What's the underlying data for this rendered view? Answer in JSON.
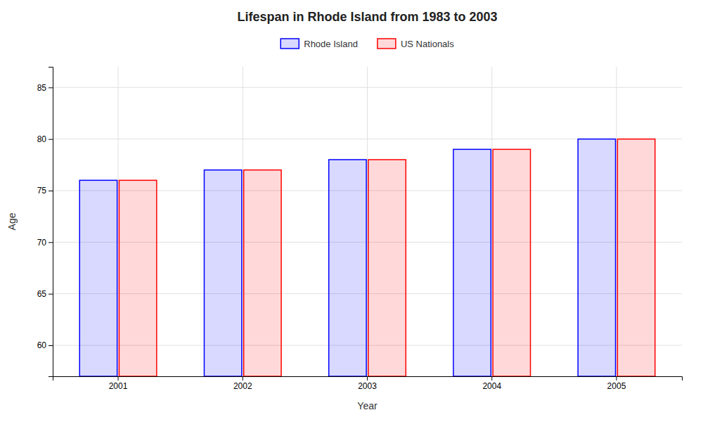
{
  "chart_data": {
    "type": "bar",
    "title": "Lifespan in Rhode Island from 1983 to 2003",
    "xlabel": "Year",
    "ylabel": "Age",
    "categories": [
      "2001",
      "2002",
      "2003",
      "2004",
      "2005"
    ],
    "series": [
      {
        "name": "Rhode Island",
        "color": "#0000ff",
        "values": [
          76,
          77,
          78,
          79,
          80
        ]
      },
      {
        "name": "US Nationals",
        "color": "#ff0000",
        "values": [
          76,
          77,
          78,
          79,
          80
        ]
      }
    ],
    "ylim": [
      57,
      87
    ],
    "yticks": [
      60,
      65,
      70,
      75,
      80,
      85
    ],
    "grid": true,
    "legend": "top"
  }
}
